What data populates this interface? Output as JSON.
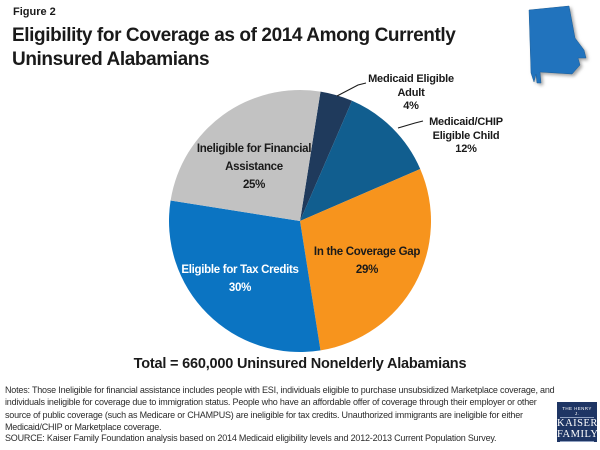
{
  "figure_label": "Figure 2",
  "title": {
    "line1": "Eligibility for Coverage as of 2014 Among Currently",
    "line2": "Uninsured Alabamians"
  },
  "state_icon": {
    "name": "alabama",
    "fill": "#2173BD"
  },
  "chart_data": {
    "type": "pie",
    "title": "Eligibility for Coverage as of 2014 Among Currently Uninsured Alabamians",
    "start_angle_deg": 9,
    "legend_position": "none",
    "total_label": "Total = 660,000 Uninsured Nonelderly Alabamians",
    "slices": [
      {
        "label": "Medicaid Eligible Adult",
        "value": 4,
        "color": "#1F3A5C",
        "label_lines": [
          "Medicaid Eligible",
          "Adult",
          "4%"
        ],
        "label_placement": "outside"
      },
      {
        "label": "Medicaid/CHIP Eligible Child",
        "value": 12,
        "color": "#115E8F",
        "label_lines": [
          "Medicaid/CHIP",
          "Eligible Child",
          "12%"
        ],
        "label_placement": "outside"
      },
      {
        "label": "In the Coverage Gap",
        "value": 29,
        "color": "#F7941D",
        "label_lines": [
          "In the Coverage Gap",
          "29%"
        ],
        "label_placement": "inside"
      },
      {
        "label": "Eligible for Tax Credits",
        "value": 30,
        "color": "#0B74C2",
        "label_lines": [
          "Eligible for Tax Credits",
          "30%"
        ],
        "label_placement": "inside",
        "label_color": "#FFFFFF"
      },
      {
        "label": "Ineligible for Financial Assistance",
        "value": 25,
        "color": "#C2C2C2",
        "label_lines": [
          "Ineligible for Financial",
          "Assistance",
          "25%"
        ],
        "label_placement": "inside"
      }
    ]
  },
  "total_label": "Total = 660,000 Uninsured Nonelderly Alabamians",
  "notes": "Notes: Those Ineligible for financial assistance includes people with ESI, individuals eligible to purchase unsubsidized Marketplace coverage, and individuals ineligible for coverage due to immigration status. People who have an affordable offer of coverage through their employer or other source of public coverage (such as Medicare or CHAMPUS) are ineligible for tax credits. Unauthorized immigrants are ineligible for either Medicaid/CHIP or Marketplace coverage.",
  "source": "SOURCE: Kaiser Family Foundation analysis based on 2014 Medicaid eligibility levels and 2012-2013 Current Population Survey.",
  "logo": {
    "top": "THE HENRY J.",
    "name1": "KAISER",
    "name2": "FAMILY",
    "bottom": "FOUNDATION",
    "bg_color": "#1E3564"
  }
}
